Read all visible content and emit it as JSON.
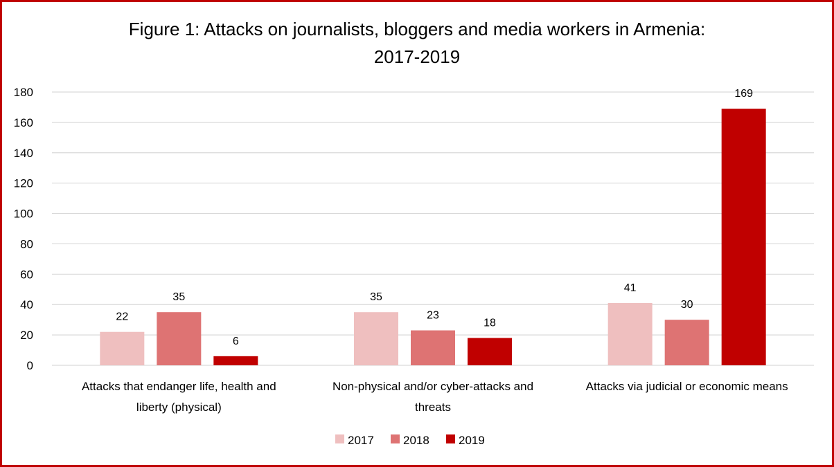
{
  "chart_data": {
    "type": "bar",
    "title": "Figure 1: Attacks on journalists, bloggers and media workers in Armenia:",
    "title_line2": "2017-2019",
    "categories": [
      [
        "Attacks that endanger life, health and",
        "liberty (physical)"
      ],
      [
        "Non-physical and/or cyber-attacks and",
        "threats"
      ],
      [
        "Attacks via judicial or economic means"
      ]
    ],
    "series": [
      {
        "name": "2017",
        "color": "#efbfbf",
        "values": [
          22,
          35,
          41
        ]
      },
      {
        "name": "2018",
        "color": "#de7373",
        "values": [
          35,
          23,
          30
        ]
      },
      {
        "name": "2019",
        "color": "#c00000",
        "values": [
          6,
          18,
          169
        ]
      }
    ],
    "ylim": [
      0,
      180
    ],
    "yticks": [
      0,
      20,
      40,
      60,
      80,
      100,
      120,
      140,
      160,
      180
    ],
    "grid": true,
    "legend_position": "bottom",
    "data_labels": true
  }
}
